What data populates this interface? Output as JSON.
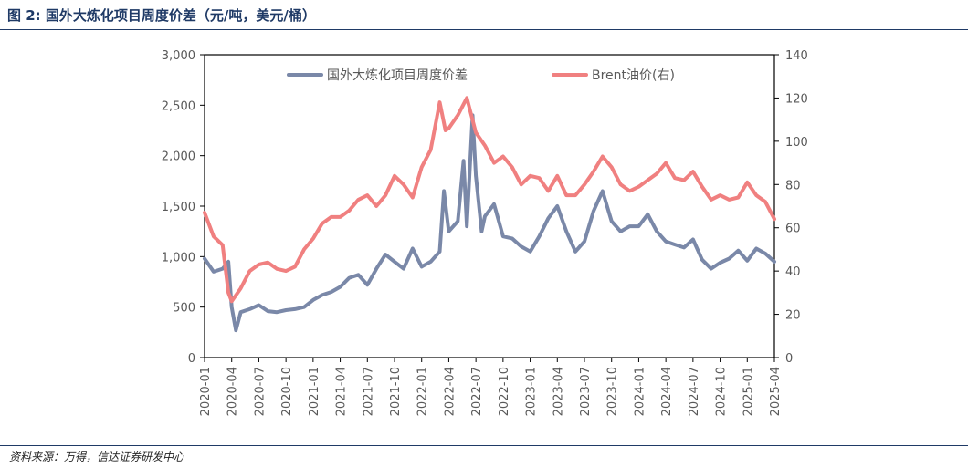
{
  "header": {
    "title": "图 2:  国外大炼化项目周度价差（元/吨，美元/桶）"
  },
  "footer": {
    "source": "资料来源：万得，信达证券研发中心"
  },
  "chart_data": {
    "type": "line",
    "left_axis": {
      "min": 0,
      "max": 3000,
      "ticks": [
        "0",
        "500",
        "1,000",
        "1,500",
        "2,000",
        "2,500",
        "3,000"
      ]
    },
    "right_axis": {
      "min": 0,
      "max": 140,
      "ticks": [
        "0",
        "20",
        "40",
        "60",
        "80",
        "100",
        "120",
        "140"
      ]
    },
    "x_range": [
      "2020-01",
      "2025-04"
    ],
    "x_ticks": [
      "2020-01",
      "2020-04",
      "2020-07",
      "2020-10",
      "2021-01",
      "2021-04",
      "2021-07",
      "2021-10",
      "2022-01",
      "2022-04",
      "2022-07",
      "2022-10",
      "2023-01",
      "2023-04",
      "2023-07",
      "2023-10",
      "2024-01",
      "2024-04",
      "2024-07",
      "2024-10",
      "2025-01",
      "2025-04"
    ],
    "legend_position": "top",
    "series": [
      {
        "name": "国外大炼化项目周度价差",
        "axis": "left",
        "color": "#7a88a8",
        "points": [
          [
            "2020-01",
            980
          ],
          [
            "2020-02",
            850
          ],
          [
            "2020-03",
            880
          ],
          [
            "2020-03-20",
            950
          ],
          [
            "2020-04",
            500
          ],
          [
            "2020-04-15",
            270
          ],
          [
            "2020-05",
            450
          ],
          [
            "2020-06",
            480
          ],
          [
            "2020-07",
            520
          ],
          [
            "2020-08",
            460
          ],
          [
            "2020-09",
            450
          ],
          [
            "2020-10",
            470
          ],
          [
            "2020-11",
            480
          ],
          [
            "2020-12",
            500
          ],
          [
            "2021-01",
            570
          ],
          [
            "2021-02",
            620
          ],
          [
            "2021-03",
            650
          ],
          [
            "2021-04",
            700
          ],
          [
            "2021-05",
            790
          ],
          [
            "2021-06",
            820
          ],
          [
            "2021-07",
            720
          ],
          [
            "2021-08",
            880
          ],
          [
            "2021-09",
            1020
          ],
          [
            "2021-10",
            950
          ],
          [
            "2021-11",
            880
          ],
          [
            "2021-12",
            1080
          ],
          [
            "2022-01",
            900
          ],
          [
            "2022-02",
            950
          ],
          [
            "2022-03",
            1050
          ],
          [
            "2022-03-15",
            1650
          ],
          [
            "2022-04",
            1250
          ],
          [
            "2022-05",
            1350
          ],
          [
            "2022-05-20",
            1950
          ],
          [
            "2022-06",
            1300
          ],
          [
            "2022-06-20",
            2400
          ],
          [
            "2022-07",
            1800
          ],
          [
            "2022-07-20",
            1250
          ],
          [
            "2022-08",
            1400
          ],
          [
            "2022-09",
            1520
          ],
          [
            "2022-10",
            1200
          ],
          [
            "2022-11",
            1180
          ],
          [
            "2022-12",
            1100
          ],
          [
            "2023-01",
            1050
          ],
          [
            "2023-02",
            1200
          ],
          [
            "2023-03",
            1380
          ],
          [
            "2023-04",
            1500
          ],
          [
            "2023-05",
            1250
          ],
          [
            "2023-06",
            1050
          ],
          [
            "2023-07",
            1150
          ],
          [
            "2023-08",
            1450
          ],
          [
            "2023-09",
            1650
          ],
          [
            "2023-10",
            1350
          ],
          [
            "2023-11",
            1250
          ],
          [
            "2023-12",
            1300
          ],
          [
            "2024-01",
            1300
          ],
          [
            "2024-02",
            1420
          ],
          [
            "2024-03",
            1250
          ],
          [
            "2024-04",
            1150
          ],
          [
            "2024-05",
            1120
          ],
          [
            "2024-06",
            1090
          ],
          [
            "2024-07",
            1170
          ],
          [
            "2024-08",
            970
          ],
          [
            "2024-09",
            880
          ],
          [
            "2024-10",
            940
          ],
          [
            "2024-11",
            980
          ],
          [
            "2024-12",
            1060
          ],
          [
            "2025-01",
            960
          ],
          [
            "2025-02",
            1080
          ],
          [
            "2025-03",
            1030
          ],
          [
            "2025-04",
            950
          ]
        ]
      },
      {
        "name": "Brent油价(右)",
        "axis": "right",
        "color": "#f08080",
        "points": [
          [
            "2020-01",
            67
          ],
          [
            "2020-02",
            56
          ],
          [
            "2020-03",
            52
          ],
          [
            "2020-03-20",
            30
          ],
          [
            "2020-04",
            26
          ],
          [
            "2020-05",
            32
          ],
          [
            "2020-06",
            40
          ],
          [
            "2020-07",
            43
          ],
          [
            "2020-08",
            44
          ],
          [
            "2020-09",
            41
          ],
          [
            "2020-10",
            40
          ],
          [
            "2020-11",
            42
          ],
          [
            "2020-12",
            50
          ],
          [
            "2021-01",
            55
          ],
          [
            "2021-02",
            62
          ],
          [
            "2021-03",
            65
          ],
          [
            "2021-04",
            65
          ],
          [
            "2021-05",
            68
          ],
          [
            "2021-06",
            73
          ],
          [
            "2021-07",
            75
          ],
          [
            "2021-08",
            70
          ],
          [
            "2021-09",
            75
          ],
          [
            "2021-10",
            84
          ],
          [
            "2021-11",
            80
          ],
          [
            "2021-12",
            74
          ],
          [
            "2022-01",
            88
          ],
          [
            "2022-02",
            96
          ],
          [
            "2022-03",
            118
          ],
          [
            "2022-03-20",
            105
          ],
          [
            "2022-04",
            106
          ],
          [
            "2022-05",
            112
          ],
          [
            "2022-06",
            120
          ],
          [
            "2022-07",
            104
          ],
          [
            "2022-08",
            98
          ],
          [
            "2022-09",
            90
          ],
          [
            "2022-10",
            93
          ],
          [
            "2022-11",
            88
          ],
          [
            "2022-12",
            80
          ],
          [
            "2023-01",
            84
          ],
          [
            "2023-02",
            83
          ],
          [
            "2023-03",
            77
          ],
          [
            "2023-04",
            84
          ],
          [
            "2023-05",
            75
          ],
          [
            "2023-06",
            75
          ],
          [
            "2023-07",
            80
          ],
          [
            "2023-08",
            86
          ],
          [
            "2023-09",
            93
          ],
          [
            "2023-10",
            88
          ],
          [
            "2023-11",
            80
          ],
          [
            "2023-12",
            77
          ],
          [
            "2024-01",
            79
          ],
          [
            "2024-02",
            82
          ],
          [
            "2024-03",
            85
          ],
          [
            "2024-04",
            90
          ],
          [
            "2024-05",
            83
          ],
          [
            "2024-06",
            82
          ],
          [
            "2024-07",
            86
          ],
          [
            "2024-08",
            79
          ],
          [
            "2024-09",
            73
          ],
          [
            "2024-10",
            75
          ],
          [
            "2024-11",
            73
          ],
          [
            "2024-12",
            74
          ],
          [
            "2025-01",
            81
          ],
          [
            "2025-02",
            75
          ],
          [
            "2025-03",
            72
          ],
          [
            "2025-04",
            64
          ]
        ]
      }
    ]
  }
}
